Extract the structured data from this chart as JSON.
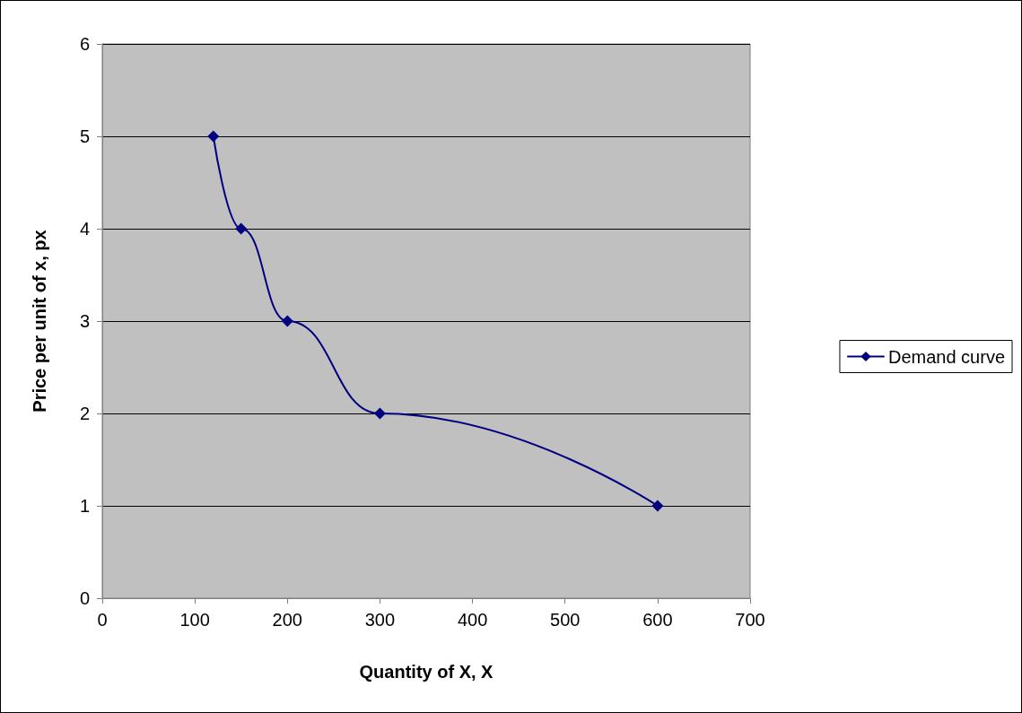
{
  "chart_data": {
    "type": "line",
    "xlabel": "Quantity of X, X",
    "ylabel": "Price per unit of x, px",
    "x": [
      120,
      150,
      200,
      300,
      600
    ],
    "series": [
      {
        "name": "Demand curve",
        "color": "#000080",
        "values": [
          5,
          4,
          3,
          2,
          1
        ]
      }
    ],
    "xlim": [
      0,
      700
    ],
    "xticks": [
      0,
      100,
      200,
      300,
      400,
      500,
      600,
      700
    ],
    "ylim": [
      0,
      6
    ],
    "yticks": [
      0,
      1,
      2,
      3,
      4,
      5,
      6
    ],
    "grid": "y",
    "legend": "right",
    "marker": "diamond",
    "line_style": "solid"
  }
}
